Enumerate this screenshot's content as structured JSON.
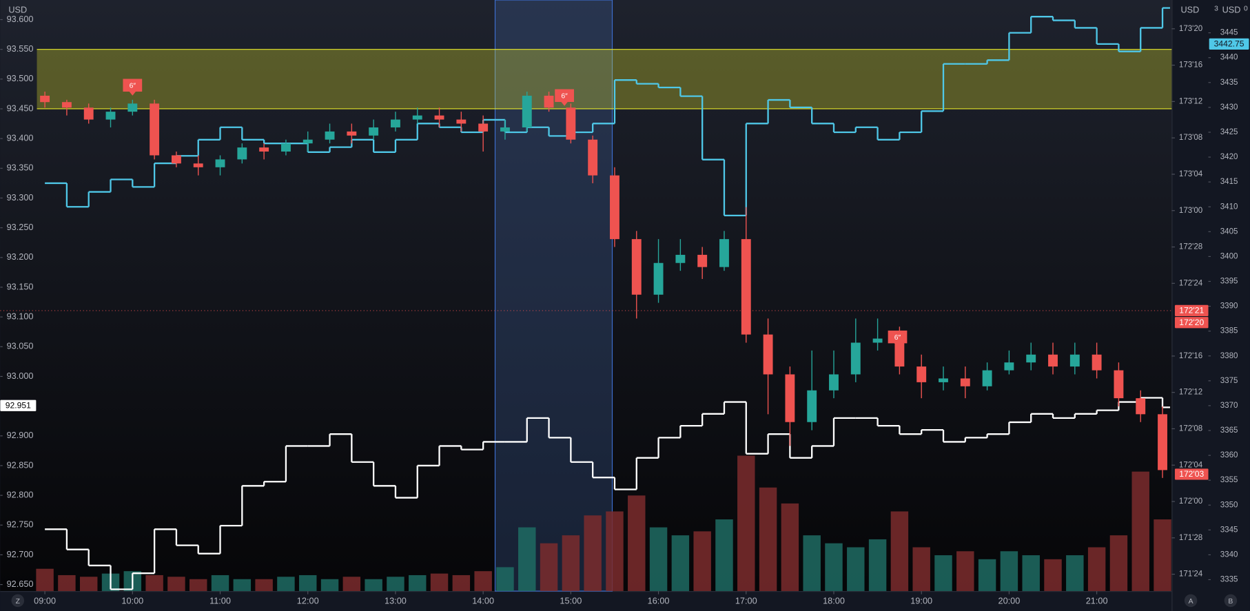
{
  "chart_data": {
    "type": "candlestick",
    "categories": [
      "09:00",
      null,
      null,
      null,
      "10:00",
      null,
      null,
      null,
      "11:00",
      null,
      null,
      null,
      "12:00",
      null,
      null,
      null,
      "13:00",
      null,
      null,
      null,
      "14:00",
      null,
      null,
      null,
      "15:00",
      null,
      null,
      null,
      "16:00",
      null,
      null,
      null,
      "17:00",
      null,
      null,
      null,
      "18:00",
      null,
      null,
      null,
      "19:00",
      null,
      null,
      null,
      "20:00",
      null,
      null,
      null,
      "21:00",
      null,
      null,
      null
    ],
    "open": [
      173.395,
      173.373,
      173.354,
      173.313,
      173.34,
      173.368,
      173.19,
      173.162,
      173.149,
      173.176,
      173.217,
      173.203,
      173.231,
      173.244,
      173.272,
      173.258,
      173.286,
      173.313,
      173.327,
      173.313,
      173.299,
      173.272,
      173.286,
      173.395,
      173.354,
      173.244,
      173.121,
      172.902,
      172.711,
      172.82,
      172.848,
      172.806,
      172.902,
      172.574,
      172.437,
      172.273,
      172.382,
      172.437,
      172.546,
      172.56,
      172.464,
      172.41,
      172.423,
      172.396,
      172.451,
      172.478,
      172.505,
      172.464,
      172.505,
      172.451,
      172.355,
      172.3
    ],
    "high": [
      173.409,
      173.381,
      173.368,
      173.354,
      173.381,
      173.381,
      173.203,
      173.19,
      173.19,
      173.231,
      173.231,
      173.244,
      173.272,
      173.299,
      173.299,
      173.313,
      173.34,
      173.354,
      173.354,
      173.34,
      173.327,
      173.313,
      173.409,
      173.409,
      173.368,
      173.258,
      173.149,
      172.93,
      172.902,
      172.902,
      172.875,
      172.93,
      173.012,
      172.629,
      172.464,
      172.519,
      172.519,
      172.629,
      172.629,
      172.601,
      172.505,
      172.464,
      172.464,
      172.478,
      172.519,
      172.546,
      172.546,
      172.546,
      172.546,
      172.478,
      172.382,
      172.327
    ],
    "low": [
      173.354,
      173.327,
      173.299,
      173.286,
      173.327,
      173.176,
      173.149,
      173.121,
      173.121,
      173.162,
      173.176,
      173.19,
      173.203,
      173.231,
      173.231,
      173.244,
      173.272,
      173.299,
      173.286,
      173.272,
      173.203,
      173.244,
      173.272,
      173.34,
      173.231,
      173.094,
      172.875,
      172.629,
      172.683,
      172.793,
      172.765,
      172.793,
      172.546,
      172.3,
      172.191,
      172.245,
      172.355,
      172.41,
      172.519,
      172.437,
      172.355,
      172.382,
      172.355,
      172.382,
      172.437,
      172.451,
      172.437,
      172.437,
      172.423,
      172.327,
      172.273,
      172.081
    ],
    "close": [
      173.373,
      173.354,
      173.313,
      173.34,
      173.368,
      173.19,
      173.162,
      173.149,
      173.176,
      173.217,
      173.203,
      173.231,
      173.244,
      173.272,
      173.258,
      173.286,
      173.313,
      173.327,
      173.313,
      173.299,
      173.272,
      173.286,
      173.395,
      173.354,
      173.244,
      173.121,
      172.902,
      172.711,
      172.82,
      172.848,
      172.806,
      172.902,
      172.574,
      172.437,
      172.273,
      172.382,
      172.437,
      172.546,
      172.56,
      172.464,
      172.41,
      172.423,
      172.396,
      172.451,
      172.478,
      172.505,
      172.464,
      172.505,
      172.451,
      172.355,
      172.3,
      172.108
    ],
    "colors": {
      "up": "#26a69a",
      "down": "#ef5350",
      "volume_up": "#1f6b63",
      "volume_down": "#7b2b2d"
    },
    "volume": [
      28,
      20,
      18,
      22,
      25,
      20,
      18,
      15,
      20,
      15,
      15,
      18,
      20,
      15,
      18,
      15,
      18,
      20,
      22,
      20,
      25,
      30,
      80,
      60,
      70,
      95,
      100,
      120,
      80,
      70,
      75,
      90,
      170,
      130,
      110,
      70,
      60,
      55,
      65,
      100,
      55,
      45,
      50,
      40,
      50,
      45,
      40,
      45,
      55,
      70,
      150,
      90
    ],
    "volume_ylim": [
      0,
      200
    ],
    "ylim": [
      171.692,
      173.724
    ],
    "yticks": [
      {
        "value": 173.625,
        "label": "173'20"
      },
      {
        "value": 173.5,
        "label": "173'16"
      },
      {
        "value": 173.375,
        "label": "173'12"
      },
      {
        "value": 173.25,
        "label": "173'08"
      },
      {
        "value": 173.125,
        "label": "173'04"
      },
      {
        "value": 173,
        "label": "173'00"
      },
      {
        "value": 172.875,
        "label": "172'28"
      },
      {
        "value": 172.75,
        "label": "172'24"
      },
      {
        "value": 172.5,
        "label": "172'16"
      },
      {
        "value": 172.375,
        "label": "172'12"
      },
      {
        "value": 172.25,
        "label": "172'08"
      },
      {
        "value": 172.125,
        "label": "172'04"
      },
      {
        "value": 172,
        "label": "172'00"
      },
      {
        "value": 171.875,
        "label": "171'28"
      },
      {
        "value": 171.75,
        "label": "171'24"
      }
    ],
    "y2lim": [
      92.639,
      93.633
    ],
    "y2ticks": [
      {
        "value": 93.6,
        "label": "93.600"
      },
      {
        "value": 93.55,
        "label": "93.550"
      },
      {
        "value": 93.5,
        "label": "93.500"
      },
      {
        "value": 93.45,
        "label": "93.450"
      },
      {
        "value": 93.4,
        "label": "93.400"
      },
      {
        "value": 93.35,
        "label": "93.350"
      },
      {
        "value": 93.3,
        "label": "93.300"
      },
      {
        "value": 93.25,
        "label": "93.250"
      },
      {
        "value": 93.2,
        "label": "93.200"
      },
      {
        "value": 93.15,
        "label": "93.150"
      },
      {
        "value": 93.1,
        "label": "93.100"
      },
      {
        "value": 93.05,
        "label": "93.050"
      },
      {
        "value": 93,
        "label": "93.000"
      },
      {
        "value": 92.95,
        "label": "92.950"
      },
      {
        "value": 92.9,
        "label": "92.900"
      },
      {
        "value": 92.85,
        "label": "92.850"
      },
      {
        "value": 92.8,
        "label": "92.800"
      },
      {
        "value": 92.75,
        "label": "92.750"
      },
      {
        "value": 92.7,
        "label": "92.700"
      },
      {
        "value": 92.65,
        "label": "92.650"
      }
    ],
    "y3lim": [
      3332.7,
      3451.6
    ],
    "y3ticks": [
      3335,
      3340,
      3345,
      3350,
      3355,
      3360,
      3365,
      3370,
      3375,
      3380,
      3385,
      3390,
      3395,
      3400,
      3405,
      3410,
      3415,
      3420,
      3425,
      3430,
      3435,
      3440,
      3445
    ],
    "series": [
      {
        "color": "#ffffff",
        "axis": "y2",
        "values": [
          92.743,
          92.709,
          92.682,
          92.642,
          92.669,
          92.743,
          92.716,
          92.702,
          92.749,
          92.816,
          92.823,
          92.883,
          92.883,
          92.903,
          92.856,
          92.816,
          92.796,
          92.85,
          92.883,
          92.877,
          92.89,
          92.89,
          92.93,
          92.897,
          92.856,
          92.83,
          92.81,
          92.863,
          92.897,
          92.917,
          92.937,
          92.957,
          92.87,
          92.903,
          92.863,
          92.883,
          92.93,
          92.93,
          92.917,
          92.903,
          92.91,
          92.89,
          92.897,
          92.903,
          92.923,
          92.937,
          92.93,
          92.937,
          92.943,
          92.957,
          92.964,
          92.948
        ]
      },
      {
        "color": "#4fc8e8",
        "axis": "y3",
        "values": [
          3414.75,
          3410,
          3413,
          3415.5,
          3414,
          3418.75,
          3420.25,
          3423.5,
          3426,
          3423.5,
          3422.75,
          3422.75,
          3421,
          3422,
          3423.5,
          3421,
          3423.5,
          3426.75,
          3426,
          3425,
          3427.5,
          3425,
          3426,
          3424.25,
          3425,
          3426.75,
          3435.5,
          3434.75,
          3434,
          3432.25,
          3419.5,
          3408.25,
          3426.75,
          3431.5,
          3430,
          3426.75,
          3425,
          3426,
          3423.5,
          3425,
          3429.25,
          3438.75,
          3438.75,
          3439.5,
          3445,
          3448.25,
          3447.5,
          3446,
          3442.75,
          3441.25,
          3446,
          3450
        ]
      }
    ],
    "zone": {
      "axis": "y2",
      "from": 93.45,
      "to": 93.55,
      "color": "#e8e82a"
    },
    "reference_line": {
      "axis": "y",
      "value": 172.65625,
      "color": "#ef5350"
    },
    "price_tags": [
      {
        "axis": "y2",
        "value": 92.951,
        "label": "92.951",
        "color": "#ffffff",
        "text_color": "#000000"
      },
      {
        "axis": "y3",
        "value": 3442.75,
        "label": "3442.75",
        "color": "#4fc8e8",
        "text_color": "#131722"
      },
      {
        "axis": "y",
        "value": 172.65625,
        "label": "172'21",
        "color": "#ef5350",
        "text_color": "#ffffff"
      },
      {
        "axis": "y",
        "value": 172.625,
        "label": "172'20",
        "color": "#ef5350",
        "text_color": "#ffffff"
      },
      {
        "axis": "y",
        "value": 172.09375,
        "label": "172'03",
        "color": "#ef5350",
        "text_color": "#ffffff"
      }
    ],
    "axis_units": {
      "y2": "USD",
      "y": "USD",
      "y3": "USD"
    },
    "header_extra": [
      "3",
      "0"
    ],
    "flags": [
      "6″",
      "6″",
      "6″"
    ]
  },
  "toolbar": [
    "Z",
    "A",
    "B"
  ]
}
